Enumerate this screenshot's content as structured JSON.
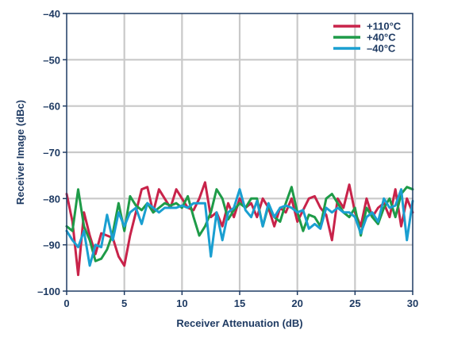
{
  "chart_data": {
    "type": "line",
    "title": "",
    "xlabel": "Receiver Attenuation (dB)",
    "ylabel": "Receiver Image (dBc)",
    "xlim": [
      0,
      30
    ],
    "ylim": [
      -100,
      -40
    ],
    "xticks": [
      0,
      5,
      10,
      15,
      20,
      25,
      30
    ],
    "yticks": [
      -100,
      -90,
      -80,
      -70,
      -60,
      -50,
      -40
    ],
    "xtick_labels": [
      "0",
      "5",
      "10",
      "15",
      "20",
      "25",
      "30"
    ],
    "ytick_labels": [
      "–100",
      "–90",
      "–80",
      "–70",
      "–60",
      "–50",
      "–40"
    ],
    "grid": true,
    "legend_position": "top-right",
    "x": [
      0,
      0.5,
      1,
      1.5,
      2,
      2.5,
      3,
      3.5,
      4,
      4.5,
      5,
      5.5,
      6,
      6.5,
      7,
      7.5,
      8,
      8.5,
      9,
      9.5,
      10,
      10.5,
      11,
      11.5,
      12,
      12.5,
      13,
      13.5,
      14,
      14.5,
      15,
      15.5,
      16,
      16.5,
      17,
      17.5,
      18,
      18.5,
      19,
      19.5,
      20,
      20.5,
      21,
      21.5,
      22,
      22.5,
      23,
      23.5,
      24,
      24.5,
      25,
      25.5,
      26,
      26.5,
      27,
      27.5,
      28,
      28.5,
      29,
      29.5,
      30
    ],
    "series": [
      {
        "name": "+110°C",
        "color": "#c8234a",
        "values": [
          -79,
          -85,
          -96.5,
          -83,
          -88,
          -92,
          -87.5,
          -88,
          -88.5,
          -92.5,
          -94.5,
          -88,
          -83,
          -78,
          -77.5,
          -83,
          -78,
          -80,
          -82,
          -78,
          -80,
          -82,
          -82.5,
          -80,
          -76.5,
          -84,
          -83,
          -86,
          -81,
          -84,
          -80,
          -82,
          -81,
          -84,
          -80,
          -82,
          -86,
          -82,
          -83,
          -80,
          -85,
          -82.5,
          -80,
          -79.5,
          -82,
          -83.5,
          -89,
          -80,
          -82,
          -77,
          -83,
          -86,
          -80,
          -84,
          -82,
          -81,
          -84,
          -78,
          -86,
          -80,
          -83
        ]
      },
      {
        "name": "+40°C",
        "color": "#1e9b48",
        "values": [
          -86,
          -87,
          -78,
          -86,
          -89,
          -93.5,
          -93,
          -91,
          -87.5,
          -81,
          -87,
          -79.5,
          -81.5,
          -82.5,
          -81,
          -83,
          -82,
          -81,
          -81.5,
          -81,
          -82,
          -79.5,
          -84,
          -88,
          -86,
          -83,
          -78,
          -80,
          -84.5,
          -82.5,
          -81,
          -82,
          -80,
          -80,
          -86,
          -81.5,
          -84,
          -85,
          -81,
          -77.5,
          -83,
          -87,
          -83.5,
          -84,
          -86,
          -80,
          -79,
          -81,
          -83,
          -84,
          -82,
          -88,
          -82,
          -84,
          -85.5,
          -82,
          -80,
          -84,
          -79,
          -77.5,
          -78
        ]
      },
      {
        "name": "–40°C",
        "color": "#1a9fd1",
        "values": [
          -87,
          -89,
          -90.5,
          -87,
          -94.5,
          -90,
          -90.5,
          -83.5,
          -89,
          -83,
          -86,
          -83,
          -82,
          -85.5,
          -81,
          -82,
          -83,
          -82,
          -82,
          -82,
          -81.5,
          -82,
          -81,
          -81,
          -81,
          -92.5,
          -83,
          -89,
          -83,
          -82,
          -78,
          -82.5,
          -84,
          -80.5,
          -86,
          -81,
          -84,
          -82,
          -81.5,
          -82,
          -83,
          -82.5,
          -86.5,
          -85.5,
          -86.5,
          -82,
          -83,
          -82,
          -83,
          -83,
          -84,
          -87.5,
          -84,
          -83,
          -85,
          -80,
          -82,
          -81.5,
          -78,
          -89,
          -80.5
        ]
      }
    ]
  }
}
